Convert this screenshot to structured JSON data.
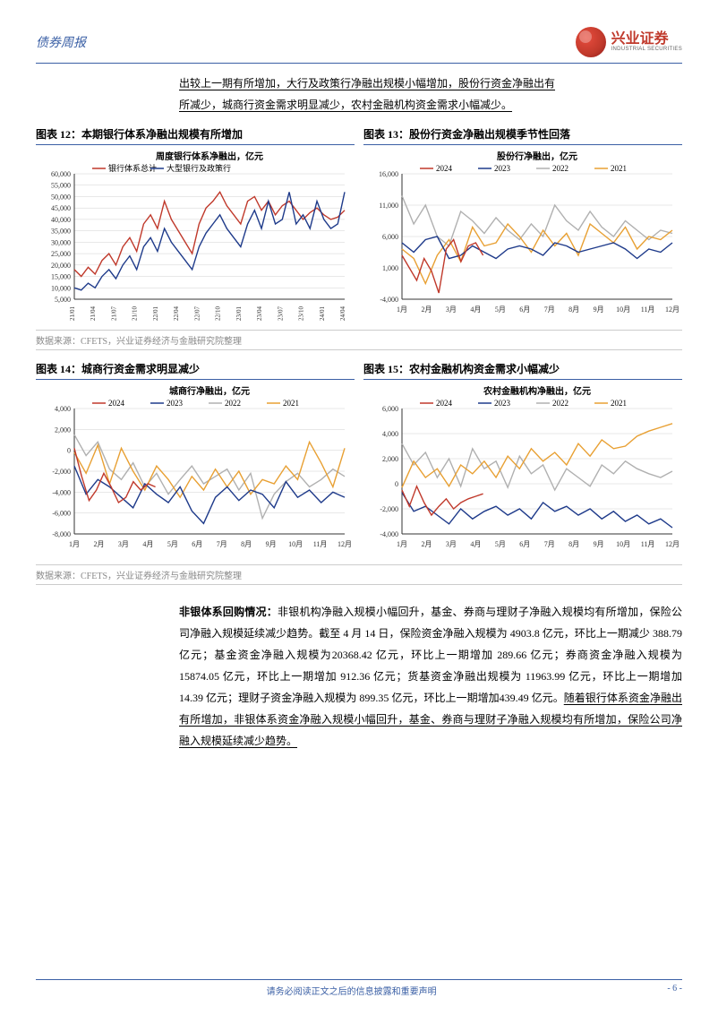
{
  "header": {
    "report_type": "债券周报",
    "logo_cn": "兴业证券",
    "logo_en": "INDUSTRIAL SECURITIES"
  },
  "intro": {
    "line1": "出较上一期有所增加，大行及政策行净融出规模小幅增加，股份行资金净融出有",
    "line2": "所减少，城商行资金需求明显减少，农村金融机构资金需求小幅减少。"
  },
  "chart12": {
    "title": "图表 12：本期银行体系净融出规模有所增加",
    "subtitle": "周度银行体系净融出，亿元",
    "legend": [
      "银行体系总计",
      "大型银行及政策行"
    ],
    "colors": {
      "s1": "#c0392b",
      "s2": "#1e3a8a",
      "grid": "#d0d0d0",
      "axis": "#666"
    },
    "xticks": [
      "21/01",
      "21/04",
      "21/07",
      "21/10",
      "22/01",
      "22/04",
      "22/07",
      "22/10",
      "23/01",
      "23/04",
      "23/07",
      "23/10",
      "24/01",
      "24/04"
    ],
    "ylim": [
      5000,
      60000
    ],
    "yticks": [
      5000,
      10000,
      15000,
      20000,
      25000,
      30000,
      35000,
      40000,
      45000,
      50000,
      55000,
      60000
    ],
    "s1": [
      18000,
      15000,
      19000,
      16000,
      22000,
      25000,
      20000,
      28000,
      32000,
      26000,
      38000,
      42000,
      36000,
      48000,
      40000,
      35000,
      30000,
      25000,
      38000,
      45000,
      48000,
      52000,
      46000,
      42000,
      38000,
      48000,
      50000,
      44000,
      48000,
      42000,
      46000,
      48000,
      44000,
      40000,
      43000,
      45000,
      42000,
      40000,
      41000,
      44000
    ],
    "s2": [
      10000,
      9000,
      12000,
      10000,
      15000,
      18000,
      14000,
      20000,
      24000,
      18000,
      28000,
      32000,
      26000,
      36000,
      30000,
      26000,
      22000,
      18000,
      28000,
      34000,
      38000,
      42000,
      36000,
      32000,
      28000,
      38000,
      44000,
      36000,
      48000,
      38000,
      40000,
      52000,
      38000,
      42000,
      36000,
      48000,
      40000,
      36000,
      38000,
      52000
    ]
  },
  "chart13": {
    "title": "图表 13：股份行资金净融出规模季节性回落",
    "subtitle": "股份行净融出，亿元",
    "legend": [
      "2024",
      "2023",
      "2022",
      "2021"
    ],
    "colors": {
      "y2024": "#c0392b",
      "y2023": "#1e3a8a",
      "y2022": "#b0b0b0",
      "y2021": "#e8a033",
      "grid": "#d0d0d0",
      "axis": "#666"
    },
    "xticks": [
      "1月",
      "2月",
      "3月",
      "4月",
      "5月",
      "6月",
      "7月",
      "8月",
      "9月",
      "10月",
      "11月",
      "12月"
    ],
    "ylim": [
      -4000,
      16000
    ],
    "yticks": [
      -4000,
      1000,
      6000,
      11000,
      16000
    ],
    "y2024": [
      3000,
      1000,
      -1000,
      2500,
      500,
      -3000,
      4000,
      5500,
      2000,
      4500,
      5000,
      3000
    ],
    "y2023": [
      5000,
      3500,
      5500,
      6000,
      2500,
      3000,
      4500,
      3500,
      2500,
      4000,
      4500,
      4000,
      3000,
      5000,
      4500,
      3500,
      4000,
      4500,
      5000,
      4000,
      2500,
      4000,
      3500,
      5000
    ],
    "y2022": [
      12500,
      8000,
      11000,
      6000,
      4500,
      10000,
      8500,
      6500,
      9000,
      7000,
      5500,
      8000,
      6000,
      11000,
      8500,
      7000,
      10000,
      7500,
      6000,
      8500,
      7000,
      5500,
      7000,
      6500
    ],
    "y2021": [
      4000,
      2500,
      -1500,
      3000,
      5500,
      2000,
      7500,
      4500,
      5000,
      8000,
      6000,
      3500,
      7000,
      4500,
      6500,
      3000,
      8000,
      6500,
      5000,
      7500,
      4000,
      6000,
      5500,
      7000
    ]
  },
  "chart14": {
    "title": "图表 14：城商行资金需求明显减少",
    "subtitle": "城商行净融出，亿元",
    "legend": [
      "2024",
      "2023",
      "2022",
      "2021"
    ],
    "colors": {
      "y2024": "#c0392b",
      "y2023": "#1e3a8a",
      "y2022": "#b0b0b0",
      "y2021": "#e8a033",
      "grid": "#d0d0d0",
      "axis": "#666"
    },
    "xticks": [
      "1月",
      "2月",
      "3月",
      "4月",
      "5月",
      "6月",
      "7月",
      "8月",
      "9月",
      "10月",
      "11月",
      "12月"
    ],
    "ylim": [
      -8000,
      4000
    ],
    "yticks": [
      -8000,
      -6000,
      -4000,
      -2000,
      0,
      2000,
      4000
    ],
    "y2024": [
      200,
      -2500,
      -4800,
      -3800,
      -2200,
      -3500,
      -5000,
      -4500,
      -3000,
      -3800,
      -3200,
      -3500
    ],
    "y2023": [
      -1500,
      -4200,
      -2800,
      -3500,
      -4500,
      -5500,
      -3200,
      -4200,
      -5000,
      -3500,
      -5800,
      -7000,
      -4500,
      -3500,
      -4800,
      -3800,
      -4200,
      -5500,
      -3000,
      -4500,
      -3800,
      -5000,
      -4000,
      -4500
    ],
    "y2022": [
      1500,
      -500,
      800,
      -1800,
      -2800,
      -1200,
      -3500,
      -2200,
      -4200,
      -2800,
      -1500,
      -3200,
      -2500,
      -1800,
      -3800,
      -2200,
      -6500,
      -4200,
      -3000,
      -2200,
      -3500,
      -2800,
      -1800,
      -2500
    ],
    "y2021": [
      -200,
      -2200,
      500,
      -3200,
      200,
      -2000,
      -3800,
      -1500,
      -2800,
      -4500,
      -2500,
      -3800,
      -1800,
      -3500,
      -2000,
      -4200,
      -2800,
      -3200,
      -1500,
      -2800,
      800,
      -1200,
      -3500,
      200
    ]
  },
  "chart15": {
    "title": "图表 15：农村金融机构资金需求小幅减少",
    "subtitle": "农村金融机构净融出，亿元",
    "legend": [
      "2024",
      "2023",
      "2022",
      "2021"
    ],
    "colors": {
      "y2024": "#c0392b",
      "y2023": "#1e3a8a",
      "y2022": "#b0b0b0",
      "y2021": "#e8a033",
      "grid": "#d0d0d0",
      "axis": "#666"
    },
    "xticks": [
      "1月",
      "2月",
      "3月",
      "4月",
      "5月",
      "6月",
      "7月",
      "8月",
      "9月",
      "10月",
      "11月",
      "12月"
    ],
    "ylim": [
      -4000,
      6000
    ],
    "yticks": [
      -4000,
      -2000,
      0,
      2000,
      4000,
      6000
    ],
    "y2024": [
      -500,
      -1800,
      -200,
      -1500,
      -2500,
      -1800,
      -1200,
      -2000,
      -1500,
      -1200,
      -1000,
      -800
    ],
    "y2023": [
      -700,
      -2200,
      -1800,
      -2500,
      -3200,
      -2000,
      -2800,
      -2200,
      -1800,
      -2500,
      -2000,
      -2800,
      -1500,
      -2200,
      -1800,
      -2500,
      -2000,
      -2800,
      -2200,
      -3000,
      -2500,
      -3200,
      -2800,
      -3500
    ],
    "y2022": [
      3200,
      1500,
      2500,
      500,
      2000,
      -200,
      2800,
      1200,
      1800,
      -300,
      2200,
      800,
      1500,
      -500,
      1200,
      500,
      -200,
      1500,
      800,
      1800,
      1200,
      800,
      500,
      1000
    ],
    "y2021": [
      -300,
      1800,
      500,
      1200,
      -200,
      1500,
      800,
      1800,
      500,
      2200,
      1200,
      2800,
      1800,
      2500,
      1500,
      3200,
      2200,
      3500,
      2800,
      3000,
      3800,
      4200,
      4500,
      4800
    ]
  },
  "datasource": "数据来源：CFETS，兴业证券经济与金融研究院整理",
  "body": {
    "lead": "非银体系回购情况：",
    "bold_tail": "非银机构净融入规模小幅回升，基金、券商与理财子净融入规模均有所增加，保险公司净融入规模延续减少趋势。",
    "p1": "截至 4 月 14 日，保险资金净融入规模为 4903.8 亿元，环比上一期减少 388.79 亿元；基金资金净融入规模为20368.42 亿元，环比上一期增加 289.66 亿元；券商资金净融入规模为 15874.05 亿元，环比上一期增加 912.36 亿元；货基资金净融出规模为 11963.99 亿元，环比上一期增加 14.39 亿元；理财子资金净融入规模为 899.35 亿元，环比上一期增加439.49 亿元。",
    "ul": "随着银行体系资金净融出有所增加，非银体系资金净融入规模小幅回升，基金、券商与理财子净融入规模均有所增加，保险公司净融入规模延续减少趋势。"
  },
  "footer": {
    "disclaimer": "请务必阅读正文之后的信息披露和重要声明",
    "page": "- 6 -"
  }
}
